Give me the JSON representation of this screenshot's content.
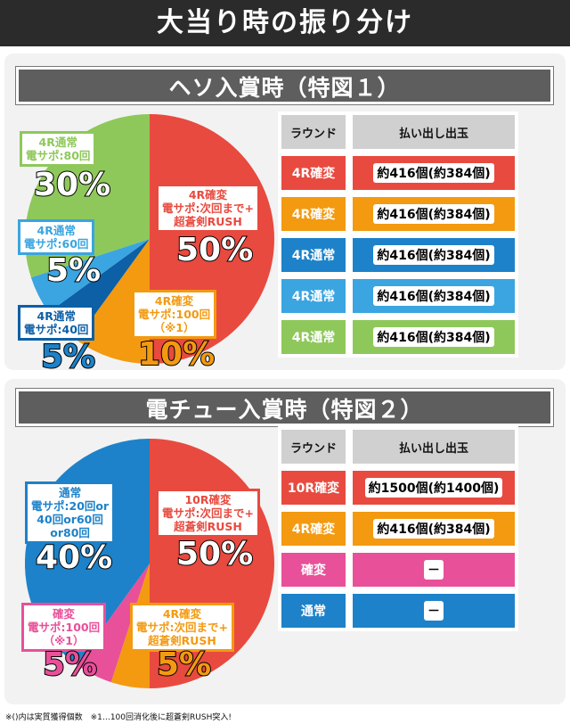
{
  "title": "大当り時の振り分け",
  "colors": {
    "red": "#e84a3f",
    "orange": "#f39a10",
    "blue": "#1d82c9",
    "lightblue": "#3aa5e0",
    "green": "#8ec85a",
    "pink": "#e8509a",
    "navy": "#0d5fa6"
  },
  "section1": {
    "heading": "ヘソ入賞時（特図１）",
    "labels": {
      "red": "4R確変\n電サポ:次回まで+\n超蒼剣RUSH",
      "orange": "4R確変\n電サポ:100回\n（※1）",
      "navy": "4R通常\n電サポ:40回",
      "lightblue": "4R通常\n電サポ:60回",
      "green": "4R通常\n電サポ:80回"
    },
    "percents": {
      "red": "50%",
      "orange": "10%",
      "navy": "5%",
      "lightblue": "5%",
      "green": "30%"
    },
    "table": {
      "headers": [
        "ラウンド",
        "払い出し出玉"
      ],
      "rows": [
        {
          "round": "4R確変",
          "payout": "約416個(約384個)",
          "color": "#e84a3f"
        },
        {
          "round": "4R確変",
          "payout": "約416個(約384個)",
          "color": "#f39a10"
        },
        {
          "round": "4R通常",
          "payout": "約416個(約384個)",
          "color": "#1d82c9"
        },
        {
          "round": "4R通常",
          "payout": "約416個(約384個)",
          "color": "#3aa5e0"
        },
        {
          "round": "4R通常",
          "payout": "約416個(約384個)",
          "color": "#8ec85a"
        }
      ]
    }
  },
  "section2": {
    "heading": "電チュー入賞時（特図２）",
    "labels": {
      "red": "10R確変\n電サポ:次回まで+\n超蒼剣RUSH",
      "orange": "4R確変\n電サポ:次回まで+\n超蒼剣RUSH",
      "pink": "確変\n電サポ:100回\n（※1）",
      "blue": "通常\n電サポ:20回or\n40回or60回\nor80回"
    },
    "percents": {
      "red": "50%",
      "orange": "5%",
      "pink": "5%",
      "blue": "40%"
    },
    "table": {
      "headers": [
        "ラウンド",
        "払い出し出玉"
      ],
      "rows": [
        {
          "round": "10R確変",
          "payout": "約1500個(約1400個)",
          "color": "#e84a3f"
        },
        {
          "round": "4R確変",
          "payout": "約416個(約384個)",
          "color": "#f39a10"
        },
        {
          "round": "確変",
          "payout": "－",
          "color": "#e8509a"
        },
        {
          "round": "通常",
          "payout": "－",
          "color": "#1d82c9"
        }
      ]
    }
  },
  "footnote": "※()内は実質獲得個数　※1…100回消化後に超蒼剣RUSH突入!"
}
